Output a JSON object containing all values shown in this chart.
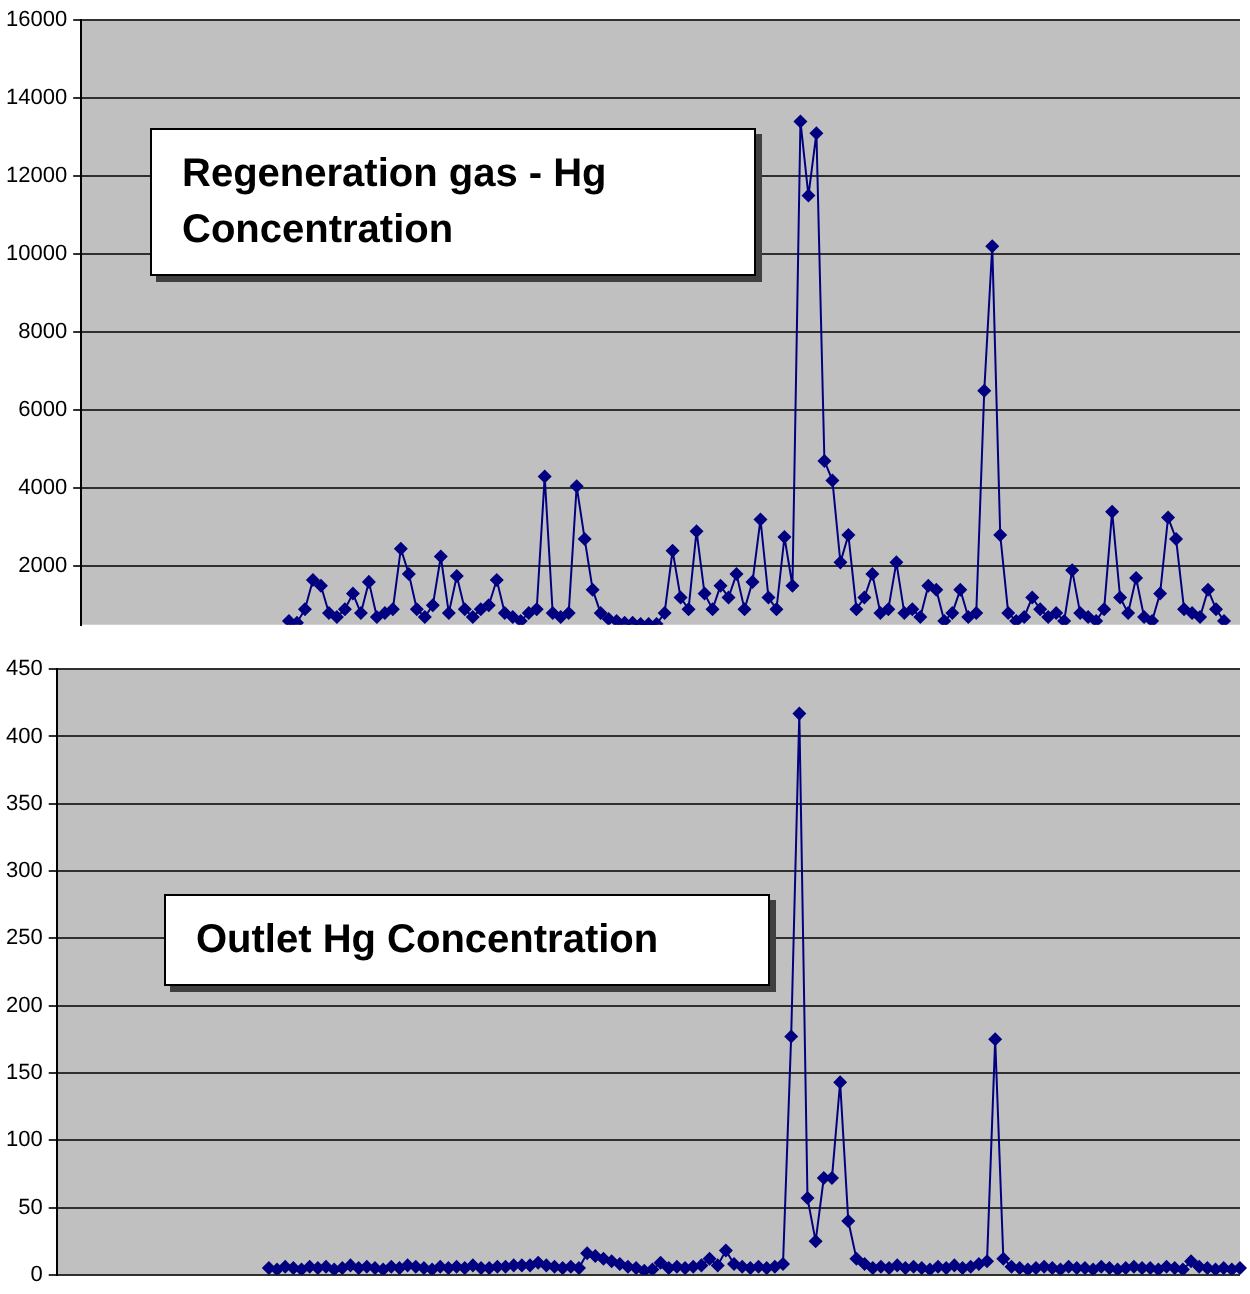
{
  "chart_data": [
    {
      "type": "line",
      "title": "Regeneration gas - Hg Concentration",
      "categories": [
        null,
        null,
        null,
        null,
        null,
        null,
        null,
        null,
        null,
        null,
        null,
        null,
        null,
        null,
        null,
        null,
        null,
        null,
        null,
        null,
        null,
        null,
        null,
        null,
        null,
        null,
        null,
        null,
        null,
        null,
        null,
        null,
        null,
        null,
        null,
        null,
        null,
        null,
        null,
        null,
        null,
        null,
        null,
        null,
        null,
        null,
        null,
        null,
        null,
        null,
        null,
        null,
        null,
        null,
        null,
        null,
        null,
        null,
        null,
        null,
        null,
        null,
        null,
        null,
        null,
        null,
        null,
        null,
        null,
        null,
        null,
        null,
        null,
        null,
        null,
        null,
        null,
        null,
        null,
        null,
        null,
        null,
        null,
        null,
        null,
        null,
        null,
        null,
        null,
        null,
        null,
        null,
        null,
        null,
        null,
        null,
        null,
        null,
        null,
        null,
        null,
        null,
        null,
        null,
        null,
        null,
        null,
        null,
        null,
        null,
        null,
        null,
        null,
        null,
        null,
        null,
        null,
        null,
        null,
        null,
        null,
        null,
        null,
        null,
        null,
        null,
        null,
        null,
        null,
        null,
        null,
        null,
        null,
        null,
        null,
        null,
        null,
        null,
        null,
        null,
        null,
        null,
        null,
        null,
        null,
        null
      ],
      "series": [
        {
          "color": "#000080",
          "values": [
            null,
            null,
            null,
            null,
            null,
            null,
            null,
            null,
            null,
            null,
            null,
            null,
            null,
            null,
            null,
            null,
            null,
            null,
            null,
            null,
            null,
            null,
            null,
            null,
            null,
            null,
            600,
            550,
            900,
            1650,
            1500,
            800,
            700,
            900,
            1300,
            800,
            1600,
            700,
            800,
            900,
            2450,
            1800,
            900,
            700,
            1000,
            2250,
            800,
            1750,
            900,
            700,
            900,
            1000,
            1650,
            800,
            700,
            600,
            800,
            900,
            4300,
            800,
            700,
            800,
            4050,
            2700,
            1400,
            800,
            650,
            600,
            550,
            550,
            520,
            520,
            520,
            800,
            2400,
            1200,
            900,
            2900,
            1300,
            900,
            1500,
            1200,
            1800,
            900,
            1600,
            3200,
            1200,
            900,
            2750,
            1500,
            13400,
            11500,
            13100,
            4700,
            4200,
            2100,
            2800,
            900,
            1200,
            1800,
            800,
            900,
            2100,
            800,
            900,
            700,
            1500,
            1400,
            600,
            800,
            1400,
            700,
            800,
            6500,
            10200,
            2800,
            800,
            600,
            700,
            1200,
            900,
            700,
            800,
            600,
            1900,
            800,
            700,
            600,
            900,
            3400,
            1200,
            800,
            1700,
            700,
            600,
            1300,
            3250,
            2700,
            900,
            800,
            700,
            1400,
            900,
            600,
            null,
            null
          ]
        }
      ],
      "ylim": [
        500,
        16000
      ],
      "yticks": [
        2000,
        4000,
        6000,
        8000,
        10000,
        12000,
        14000,
        16000
      ],
      "grid": "y",
      "legend": false,
      "tick_labels": "y",
      "marker": "diamond",
      "line_style": "solid"
    },
    {
      "type": "line",
      "title": "Outlet Hg Concentration",
      "categories": [
        null,
        null,
        null,
        null,
        null,
        null,
        null,
        null,
        null,
        null,
        null,
        null,
        null,
        null,
        null,
        null,
        null,
        null,
        null,
        null,
        null,
        null,
        null,
        null,
        null,
        null,
        null,
        null,
        null,
        null,
        null,
        null,
        null,
        null,
        null,
        null,
        null,
        null,
        null,
        null,
        null,
        null,
        null,
        null,
        null,
        null,
        null,
        null,
        null,
        null,
        null,
        null,
        null,
        null,
        null,
        null,
        null,
        null,
        null,
        null,
        null,
        null,
        null,
        null,
        null,
        null,
        null,
        null,
        null,
        null,
        null,
        null,
        null,
        null,
        null,
        null,
        null,
        null,
        null,
        null,
        null,
        null,
        null,
        null,
        null,
        null,
        null,
        null,
        null,
        null,
        null,
        null,
        null,
        null,
        null,
        null,
        null,
        null,
        null,
        null,
        null,
        null,
        null,
        null,
        null,
        null,
        null,
        null,
        null,
        null,
        null,
        null,
        null,
        null,
        null,
        null,
        null,
        null,
        null,
        null,
        null,
        null,
        null,
        null,
        null,
        null,
        null,
        null,
        null,
        null,
        null,
        null,
        null,
        null,
        null,
        null,
        null,
        null,
        null,
        null,
        null,
        null,
        null,
        null,
        null,
        null
      ],
      "series": [
        {
          "color": "#000080",
          "values": [
            null,
            null,
            null,
            null,
            null,
            null,
            null,
            null,
            null,
            null,
            null,
            null,
            null,
            null,
            null,
            null,
            null,
            null,
            null,
            null,
            null,
            null,
            null,
            null,
            null,
            null,
            5,
            4,
            6,
            5,
            4,
            6,
            5,
            6,
            4,
            5,
            7,
            5,
            6,
            5,
            4,
            6,
            5,
            7,
            6,
            5,
            4,
            6,
            5,
            6,
            5,
            7,
            5,
            5,
            6,
            6,
            7,
            7,
            7,
            9,
            7,
            6,
            5,
            6,
            5,
            16,
            14,
            12,
            10,
            8,
            6,
            5,
            3,
            4,
            9,
            5,
            6,
            5,
            6,
            7,
            12,
            7,
            18,
            8,
            6,
            5,
            6,
            5,
            6,
            8,
            177,
            417,
            57,
            25,
            72,
            72,
            143,
            40,
            12,
            8,
            5,
            6,
            5,
            7,
            5,
            6,
            5,
            4,
            6,
            5,
            7,
            5,
            6,
            8,
            10,
            175,
            12,
            6,
            5,
            4,
            5,
            6,
            5,
            4,
            6,
            5,
            5,
            4,
            6,
            5,
            4,
            5,
            6,
            5,
            5,
            4,
            6,
            5,
            4,
            10,
            6,
            5,
            4,
            5,
            4,
            5
          ]
        }
      ],
      "ylim": [
        0,
        450
      ],
      "yticks": [
        0,
        50,
        100,
        150,
        200,
        250,
        300,
        350,
        400,
        450
      ],
      "grid": "y",
      "legend": false,
      "tick_labels": "y",
      "marker": "diamond",
      "line_style": "solid"
    }
  ]
}
